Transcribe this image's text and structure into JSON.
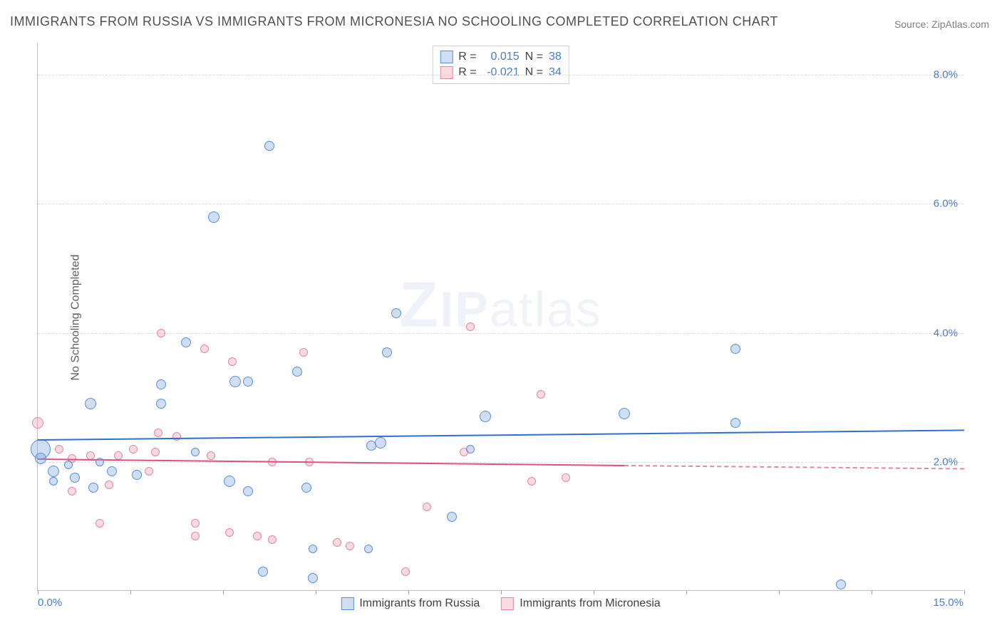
{
  "title": "IMMIGRANTS FROM RUSSIA VS IMMIGRANTS FROM MICRONESIA NO SCHOOLING COMPLETED CORRELATION CHART",
  "source": "Source: ZipAtlas.com",
  "ylabel": "No Schooling Completed",
  "watermark": "ZIPatlas",
  "chart": {
    "type": "scatter",
    "xlim": [
      0,
      15
    ],
    "ylim": [
      0,
      8.5
    ],
    "ytick_step": 2,
    "yticks": [
      2,
      4,
      6,
      8
    ],
    "ytick_labels": [
      "2.0%",
      "4.0%",
      "6.0%",
      "8.0%"
    ],
    "xtick_positions": [
      0,
      1.5,
      3,
      4.5,
      6,
      7.5,
      9,
      10.5,
      12,
      13.5,
      15
    ],
    "xaxis_min_label": "0.0%",
    "xaxis_max_label": "15.0%",
    "background_color": "#ffffff",
    "grid_color": "#dcdcdc",
    "series": {
      "russia": {
        "label": "Immigrants from Russia",
        "fill": "rgba(120,160,220,0.35)",
        "stroke": "#5a8fd6",
        "trend_color": "#2e6fd0",
        "r_value": "0.015",
        "n_value": "38",
        "trend": {
          "x1": 0,
          "y1": 2.35,
          "x2": 15,
          "y2": 2.5
        },
        "points": [
          {
            "x": 0.05,
            "y": 2.2,
            "r": 14
          },
          {
            "x": 0.05,
            "y": 2.05,
            "r": 8
          },
          {
            "x": 0.25,
            "y": 1.85,
            "r": 8
          },
          {
            "x": 0.25,
            "y": 1.7,
            "r": 6
          },
          {
            "x": 0.6,
            "y": 1.75,
            "r": 7
          },
          {
            "x": 0.85,
            "y": 2.9,
            "r": 8
          },
          {
            "x": 0.9,
            "y": 1.6,
            "r": 7
          },
          {
            "x": 1.2,
            "y": 1.85,
            "r": 7
          },
          {
            "x": 1.6,
            "y": 1.8,
            "r": 7
          },
          {
            "x": 2.0,
            "y": 2.9,
            "r": 7
          },
          {
            "x": 2.0,
            "y": 3.2,
            "r": 7
          },
          {
            "x": 2.4,
            "y": 3.85,
            "r": 7
          },
          {
            "x": 2.85,
            "y": 5.8,
            "r": 8
          },
          {
            "x": 3.1,
            "y": 1.7,
            "r": 8
          },
          {
            "x": 3.2,
            "y": 3.25,
            "r": 8
          },
          {
            "x": 3.4,
            "y": 3.25,
            "r": 7
          },
          {
            "x": 3.4,
            "y": 1.55,
            "r": 7
          },
          {
            "x": 3.65,
            "y": 0.3,
            "r": 7
          },
          {
            "x": 3.75,
            "y": 6.9,
            "r": 7
          },
          {
            "x": 4.2,
            "y": 3.4,
            "r": 7
          },
          {
            "x": 4.35,
            "y": 1.6,
            "r": 7
          },
          {
            "x": 4.45,
            "y": 0.2,
            "r": 7
          },
          {
            "x": 4.45,
            "y": 0.65,
            "r": 6
          },
          {
            "x": 5.35,
            "y": 0.65,
            "r": 6
          },
          {
            "x": 5.4,
            "y": 2.25,
            "r": 7
          },
          {
            "x": 5.55,
            "y": 2.3,
            "r": 8
          },
          {
            "x": 5.65,
            "y": 3.7,
            "r": 7
          },
          {
            "x": 5.8,
            "y": 4.3,
            "r": 7
          },
          {
            "x": 6.7,
            "y": 1.15,
            "r": 7
          },
          {
            "x": 7.0,
            "y": 2.2,
            "r": 6
          },
          {
            "x": 7.25,
            "y": 2.7,
            "r": 8
          },
          {
            "x": 9.5,
            "y": 2.75,
            "r": 8
          },
          {
            "x": 11.3,
            "y": 2.6,
            "r": 7
          },
          {
            "x": 11.3,
            "y": 3.75,
            "r": 7
          },
          {
            "x": 13.0,
            "y": 0.1,
            "r": 7
          },
          {
            "x": 2.55,
            "y": 2.15,
            "r": 6
          },
          {
            "x": 1.0,
            "y": 2.0,
            "r": 6
          },
          {
            "x": 0.5,
            "y": 1.95,
            "r": 6
          }
        ]
      },
      "micronesia": {
        "label": "Immigrants from Micronesia",
        "fill": "rgba(240,150,170,0.35)",
        "stroke": "#e388a0",
        "trend_color": "#e05080",
        "r_value": "-0.021",
        "n_value": "34",
        "trend": {
          "x1": 0,
          "y1": 2.05,
          "x2": 9.5,
          "y2": 1.95
        },
        "trend_dash": {
          "x1": 9.5,
          "y1": 1.95,
          "x2": 15,
          "y2": 1.9
        },
        "points": [
          {
            "x": 0.0,
            "y": 2.6,
            "r": 8
          },
          {
            "x": 0.35,
            "y": 2.2,
            "r": 6
          },
          {
            "x": 0.55,
            "y": 2.05,
            "r": 6
          },
          {
            "x": 0.55,
            "y": 1.55,
            "r": 6
          },
          {
            "x": 0.85,
            "y": 2.1,
            "r": 6
          },
          {
            "x": 1.0,
            "y": 1.05,
            "r": 6
          },
          {
            "x": 1.15,
            "y": 1.65,
            "r": 6
          },
          {
            "x": 1.3,
            "y": 2.1,
            "r": 6
          },
          {
            "x": 1.55,
            "y": 2.2,
            "r": 6
          },
          {
            "x": 1.8,
            "y": 1.85,
            "r": 6
          },
          {
            "x": 1.9,
            "y": 2.15,
            "r": 6
          },
          {
            "x": 1.95,
            "y": 2.45,
            "r": 6
          },
          {
            "x": 2.0,
            "y": 4.0,
            "r": 6
          },
          {
            "x": 2.25,
            "y": 2.4,
            "r": 6
          },
          {
            "x": 2.55,
            "y": 0.85,
            "r": 6
          },
          {
            "x": 2.55,
            "y": 1.05,
            "r": 6
          },
          {
            "x": 2.7,
            "y": 3.75,
            "r": 6
          },
          {
            "x": 2.8,
            "y": 2.1,
            "r": 6
          },
          {
            "x": 3.1,
            "y": 0.9,
            "r": 6
          },
          {
            "x": 3.15,
            "y": 3.55,
            "r": 6
          },
          {
            "x": 3.55,
            "y": 0.85,
            "r": 6
          },
          {
            "x": 3.8,
            "y": 0.8,
            "r": 6
          },
          {
            "x": 3.8,
            "y": 2.0,
            "r": 6
          },
          {
            "x": 4.3,
            "y": 3.7,
            "r": 6
          },
          {
            "x": 4.4,
            "y": 2.0,
            "r": 6
          },
          {
            "x": 4.85,
            "y": 0.75,
            "r": 6
          },
          {
            "x": 5.05,
            "y": 0.7,
            "r": 6
          },
          {
            "x": 5.95,
            "y": 0.3,
            "r": 6
          },
          {
            "x": 6.3,
            "y": 1.3,
            "r": 6
          },
          {
            "x": 6.9,
            "y": 2.15,
            "r": 6
          },
          {
            "x": 7.0,
            "y": 4.1,
            "r": 6
          },
          {
            "x": 8.0,
            "y": 1.7,
            "r": 6
          },
          {
            "x": 8.15,
            "y": 3.05,
            "r": 6
          },
          {
            "x": 8.55,
            "y": 1.75,
            "r": 6
          }
        ]
      }
    }
  },
  "legend_top": {
    "r_label": "R =",
    "n_label": "N ="
  }
}
